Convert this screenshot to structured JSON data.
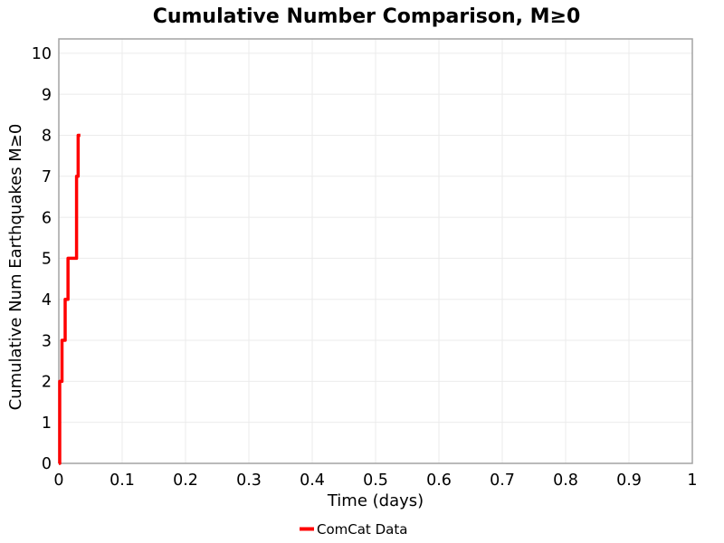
{
  "chart_data": {
    "type": "line",
    "title": "Cumulative Number Comparison, M≥0",
    "xlabel": "Time (days)",
    "ylabel": "Cumulative Num Earthquakes M≥0",
    "xlim": [
      0,
      1
    ],
    "ylim": [
      0,
      10.35
    ],
    "grid": true,
    "xticks": [
      0,
      0.1,
      0.2,
      0.3,
      0.4,
      0.5,
      0.6,
      0.7,
      0.8,
      0.9,
      1
    ],
    "xtick_labels": [
      "0",
      "0.1",
      "0.2",
      "0.3",
      "0.4",
      "0.5",
      "0.6",
      "0.7",
      "0.8",
      "0.9",
      "1"
    ],
    "yticks": [
      0,
      1,
      2,
      3,
      4,
      5,
      6,
      7,
      8,
      9,
      10
    ],
    "ytick_labels": [
      "0",
      "1",
      "2",
      "3",
      "4",
      "5",
      "6",
      "7",
      "8",
      "9",
      "10"
    ],
    "legend": {
      "position": "bottom-center",
      "entries": [
        {
          "label": "ComCat Data",
          "color": "#ff0000"
        }
      ]
    },
    "series": [
      {
        "name": "ComCat Data",
        "color": "#ff0000",
        "line_width": 3.5,
        "step_points": [
          [
            0,
            0
          ],
          [
            0.0014,
            0
          ],
          [
            0.0014,
            2
          ],
          [
            0.005,
            2
          ],
          [
            0.005,
            3
          ],
          [
            0.01,
            3
          ],
          [
            0.01,
            4
          ],
          [
            0.0145,
            4
          ],
          [
            0.0145,
            5
          ],
          [
            0.028,
            5
          ],
          [
            0.028,
            7
          ],
          [
            0.0305,
            7
          ],
          [
            0.0305,
            8
          ],
          [
            0.034,
            8
          ]
        ]
      }
    ],
    "colors": {
      "line": "#ff0000",
      "grid": "#ebebeb",
      "panel_border": "#a3a3a3",
      "text": "#000000",
      "background": "#ffffff"
    }
  }
}
